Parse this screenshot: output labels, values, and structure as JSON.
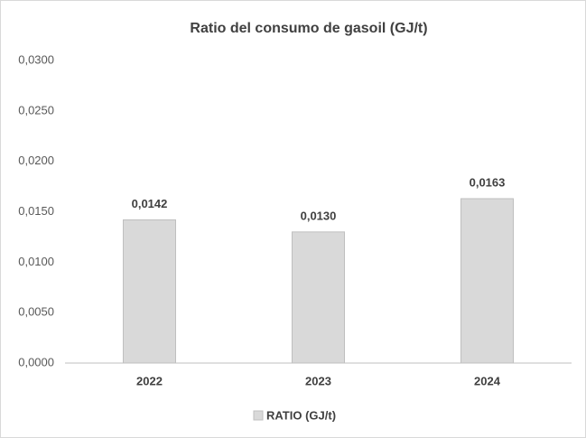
{
  "chart_data": {
    "type": "bar",
    "title": "Ratio del consumo de gasoil (GJ/t)",
    "categories": [
      "2022",
      "2023",
      "2024"
    ],
    "series": [
      {
        "name": "RATIO (GJ/t)",
        "color": "#d9d9d9",
        "values": [
          0.0142,
          0.013,
          0.0163
        ],
        "value_labels": [
          "0,0142",
          "0,0130",
          "0,0163"
        ]
      }
    ],
    "ylim": [
      0,
      0.03
    ],
    "yticks": [
      {
        "value": 0,
        "label": "0,0000"
      },
      {
        "value": 0.005,
        "label": "0,0050"
      },
      {
        "value": 0.01,
        "label": "0,0100"
      },
      {
        "value": 0.015,
        "label": "0,0150"
      },
      {
        "value": 0.02,
        "label": "0,0200"
      },
      {
        "value": 0.025,
        "label": "0,0250"
      },
      {
        "value": 0.03,
        "label": "0,0300"
      }
    ],
    "grid": false,
    "legend": "bottom"
  }
}
